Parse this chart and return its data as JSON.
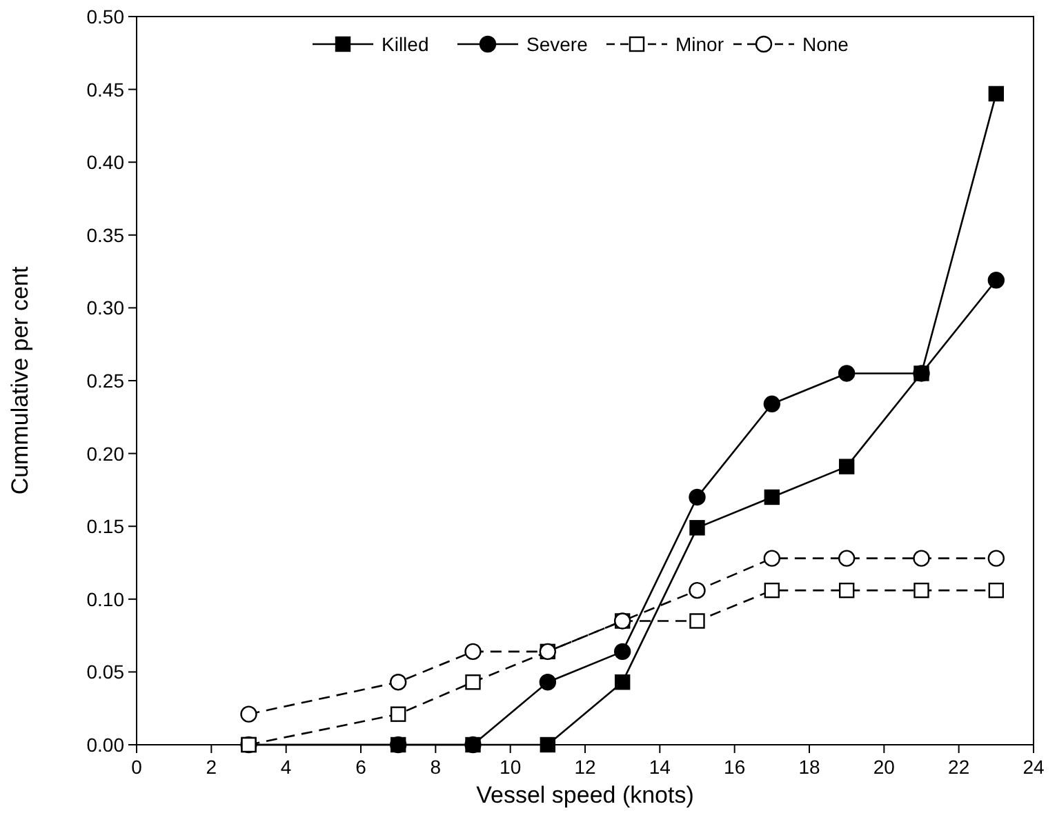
{
  "chart_data": {
    "type": "line",
    "xlabel": "Vessel speed (knots)",
    "ylabel": "Cummulative per cent",
    "x": [
      3,
      7,
      9,
      11,
      13,
      15,
      17,
      19,
      21,
      23
    ],
    "xlim": [
      0,
      24
    ],
    "xticks": [
      0,
      2,
      4,
      6,
      8,
      10,
      12,
      14,
      16,
      18,
      20,
      22,
      24
    ],
    "ylim": [
      0,
      0.5
    ],
    "yticks": [
      {
        "value": 0,
        "label": "0.00"
      },
      {
        "value": 0.05,
        "label": "0.05"
      },
      {
        "value": 0.1,
        "label": "0.10"
      },
      {
        "value": 0.15,
        "label": "0.15"
      },
      {
        "value": 0.2,
        "label": "0.20"
      },
      {
        "value": 0.25,
        "label": "0.25"
      },
      {
        "value": 0.3,
        "label": "0.30"
      },
      {
        "value": 0.35,
        "label": "0.35"
      },
      {
        "value": 0.4,
        "label": "0.40"
      },
      {
        "value": 0.45,
        "label": "0.45"
      },
      {
        "value": 0.5,
        "label": "0.50"
      }
    ],
    "legend": "top",
    "grid": false,
    "series": [
      {
        "name": "Killed",
        "color": "#000000",
        "marker": "square",
        "line_style": "solid",
        "values": [
          0,
          0,
          0,
          0,
          0.043,
          0.149,
          0.17,
          0.191,
          0.255,
          0.447
        ]
      },
      {
        "name": "Severe",
        "color": "#000000",
        "marker": "circle",
        "line_style": "solid",
        "values": [
          0,
          0,
          0,
          0.043,
          0.064,
          0.17,
          0.234,
          0.255,
          0.255,
          0.319
        ]
      },
      {
        "name": "Minor",
        "color": "#000000",
        "marker": "square",
        "line_style": "dashed",
        "values": [
          0,
          0.021,
          0.043,
          0.064,
          0.085,
          0.085,
          0.106,
          0.106,
          0.106,
          0.106
        ]
      },
      {
        "name": "None",
        "color": "#000000",
        "marker": "circle",
        "line_style": "dashed",
        "values": [
          0.021,
          0.043,
          0.064,
          0.064,
          0.085,
          0.106,
          0.128,
          0.128,
          0.128,
          0.128
        ]
      }
    ]
  }
}
